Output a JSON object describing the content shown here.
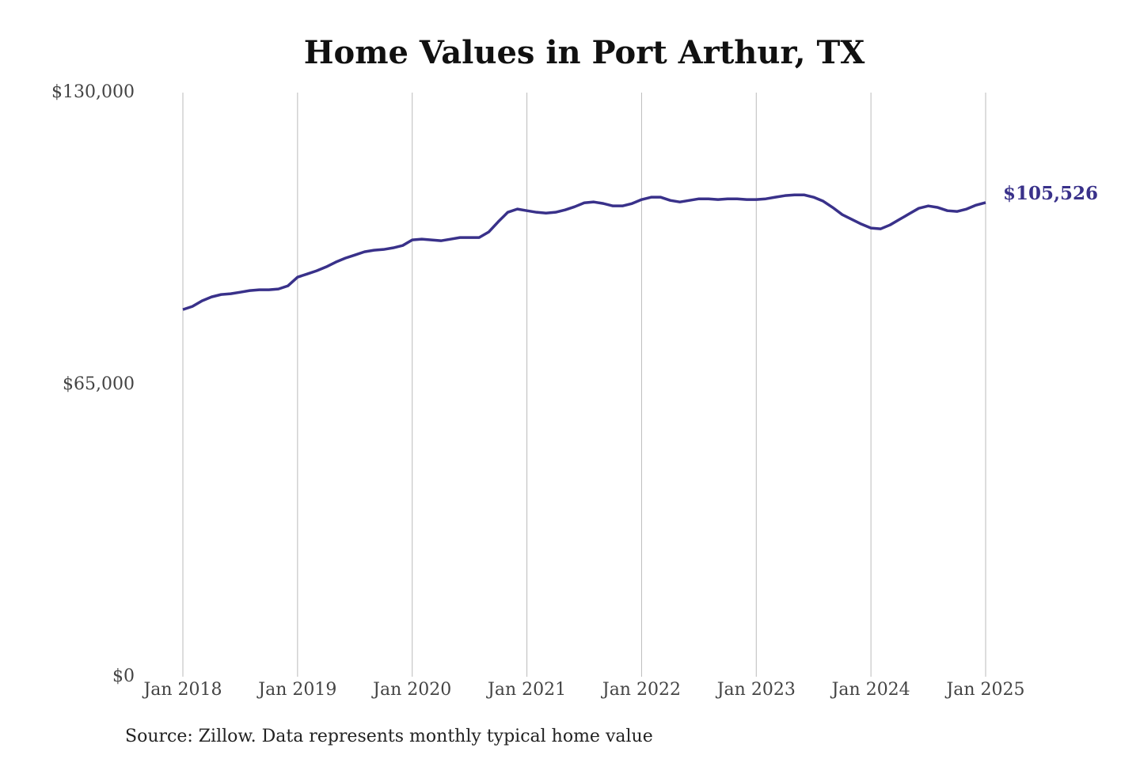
{
  "chart_data": {
    "type": "line",
    "title": "Home Values in Port Arthur, TX",
    "source": "Source: Zillow. Data represents monthly typical home value",
    "x": [
      "2018-01",
      "2018-02",
      "2018-03",
      "2018-04",
      "2018-05",
      "2018-06",
      "2018-07",
      "2018-08",
      "2018-09",
      "2018-10",
      "2018-11",
      "2018-12",
      "2019-01",
      "2019-02",
      "2019-03",
      "2019-04",
      "2019-05",
      "2019-06",
      "2019-07",
      "2019-08",
      "2019-09",
      "2019-10",
      "2019-11",
      "2019-12",
      "2020-01",
      "2020-02",
      "2020-03",
      "2020-04",
      "2020-05",
      "2020-06",
      "2020-07",
      "2020-08",
      "2020-09",
      "2020-10",
      "2020-11",
      "2020-12",
      "2021-01",
      "2021-02",
      "2021-03",
      "2021-04",
      "2021-05",
      "2021-06",
      "2021-07",
      "2021-08",
      "2021-09",
      "2021-10",
      "2021-11",
      "2021-12",
      "2022-01",
      "2022-02",
      "2022-03",
      "2022-04",
      "2022-05",
      "2022-06",
      "2022-07",
      "2022-08",
      "2022-09",
      "2022-10",
      "2022-11",
      "2022-12",
      "2023-01",
      "2023-02",
      "2023-03",
      "2023-04",
      "2023-05",
      "2023-06",
      "2023-07",
      "2023-08",
      "2023-09",
      "2023-10",
      "2023-11",
      "2023-12",
      "2024-01",
      "2024-02",
      "2024-03",
      "2024-04",
      "2024-05",
      "2024-06",
      "2024-07",
      "2024-08",
      "2024-09",
      "2024-10",
      "2024-11",
      "2024-12",
      "2025-01"
    ],
    "values": [
      81710,
      82415,
      83650,
      84530,
      85060,
      85230,
      85580,
      85940,
      86110,
      86110,
      86290,
      87000,
      88930,
      89630,
      90340,
      91220,
      92280,
      93160,
      93860,
      94570,
      94920,
      95090,
      95450,
      95970,
      97210,
      97380,
      97210,
      97030,
      97380,
      97740,
      97740,
      97740,
      98970,
      101260,
      103370,
      104080,
      103720,
      103370,
      103190,
      103370,
      103900,
      104600,
      105480,
      105660,
      105310,
      104780,
      104780,
      105310,
      106190,
      106720,
      106720,
      106010,
      105660,
      106010,
      106360,
      106360,
      106190,
      106360,
      106360,
      106190,
      106190,
      106360,
      106720,
      107070,
      107240,
      107240,
      106720,
      105840,
      104430,
      102840,
      101790,
      100730,
      99850,
      99670,
      100550,
      101790,
      103020,
      104250,
      104780,
      104430,
      103720,
      103550,
      104080,
      104960,
      105526
    ],
    "value_labels": [
      null,
      null,
      null,
      null,
      null,
      null,
      null,
      null,
      null,
      null,
      null,
      null,
      null,
      null,
      null,
      null,
      null,
      null,
      null,
      null,
      null,
      null,
      null,
      null,
      null,
      null,
      null,
      null,
      null,
      null,
      null,
      null,
      null,
      null,
      null,
      null,
      null,
      null,
      null,
      null,
      null,
      null,
      null,
      null,
      null,
      null,
      null,
      null,
      null,
      null,
      null,
      null,
      null,
      null,
      null,
      null,
      null,
      null,
      null,
      null,
      null,
      null,
      null,
      null,
      null,
      null,
      null,
      null,
      null,
      null,
      null,
      null,
      null,
      null,
      null,
      null,
      null,
      null,
      null,
      null,
      null,
      null,
      null,
      null,
      "$105,526"
    ],
    "color": "#39318a",
    "ylim": [
      0,
      130000
    ],
    "yticks": [
      {
        "value": 0,
        "label": "$0"
      },
      {
        "value": 65000,
        "label": "$65,000"
      },
      {
        "value": 130000,
        "label": "$130,000"
      }
    ],
    "xticks": [
      {
        "value": "2018-01",
        "label": "Jan 2018"
      },
      {
        "value": "2019-01",
        "label": "Jan 2019"
      },
      {
        "value": "2020-01",
        "label": "Jan 2020"
      },
      {
        "value": "2021-01",
        "label": "Jan 2021"
      },
      {
        "value": "2022-01",
        "label": "Jan 2022"
      },
      {
        "value": "2023-01",
        "label": "Jan 2023"
      },
      {
        "value": "2024-01",
        "label": "Jan 2024"
      },
      {
        "value": "2025-01",
        "label": "Jan 2025"
      }
    ],
    "grid": "x"
  }
}
